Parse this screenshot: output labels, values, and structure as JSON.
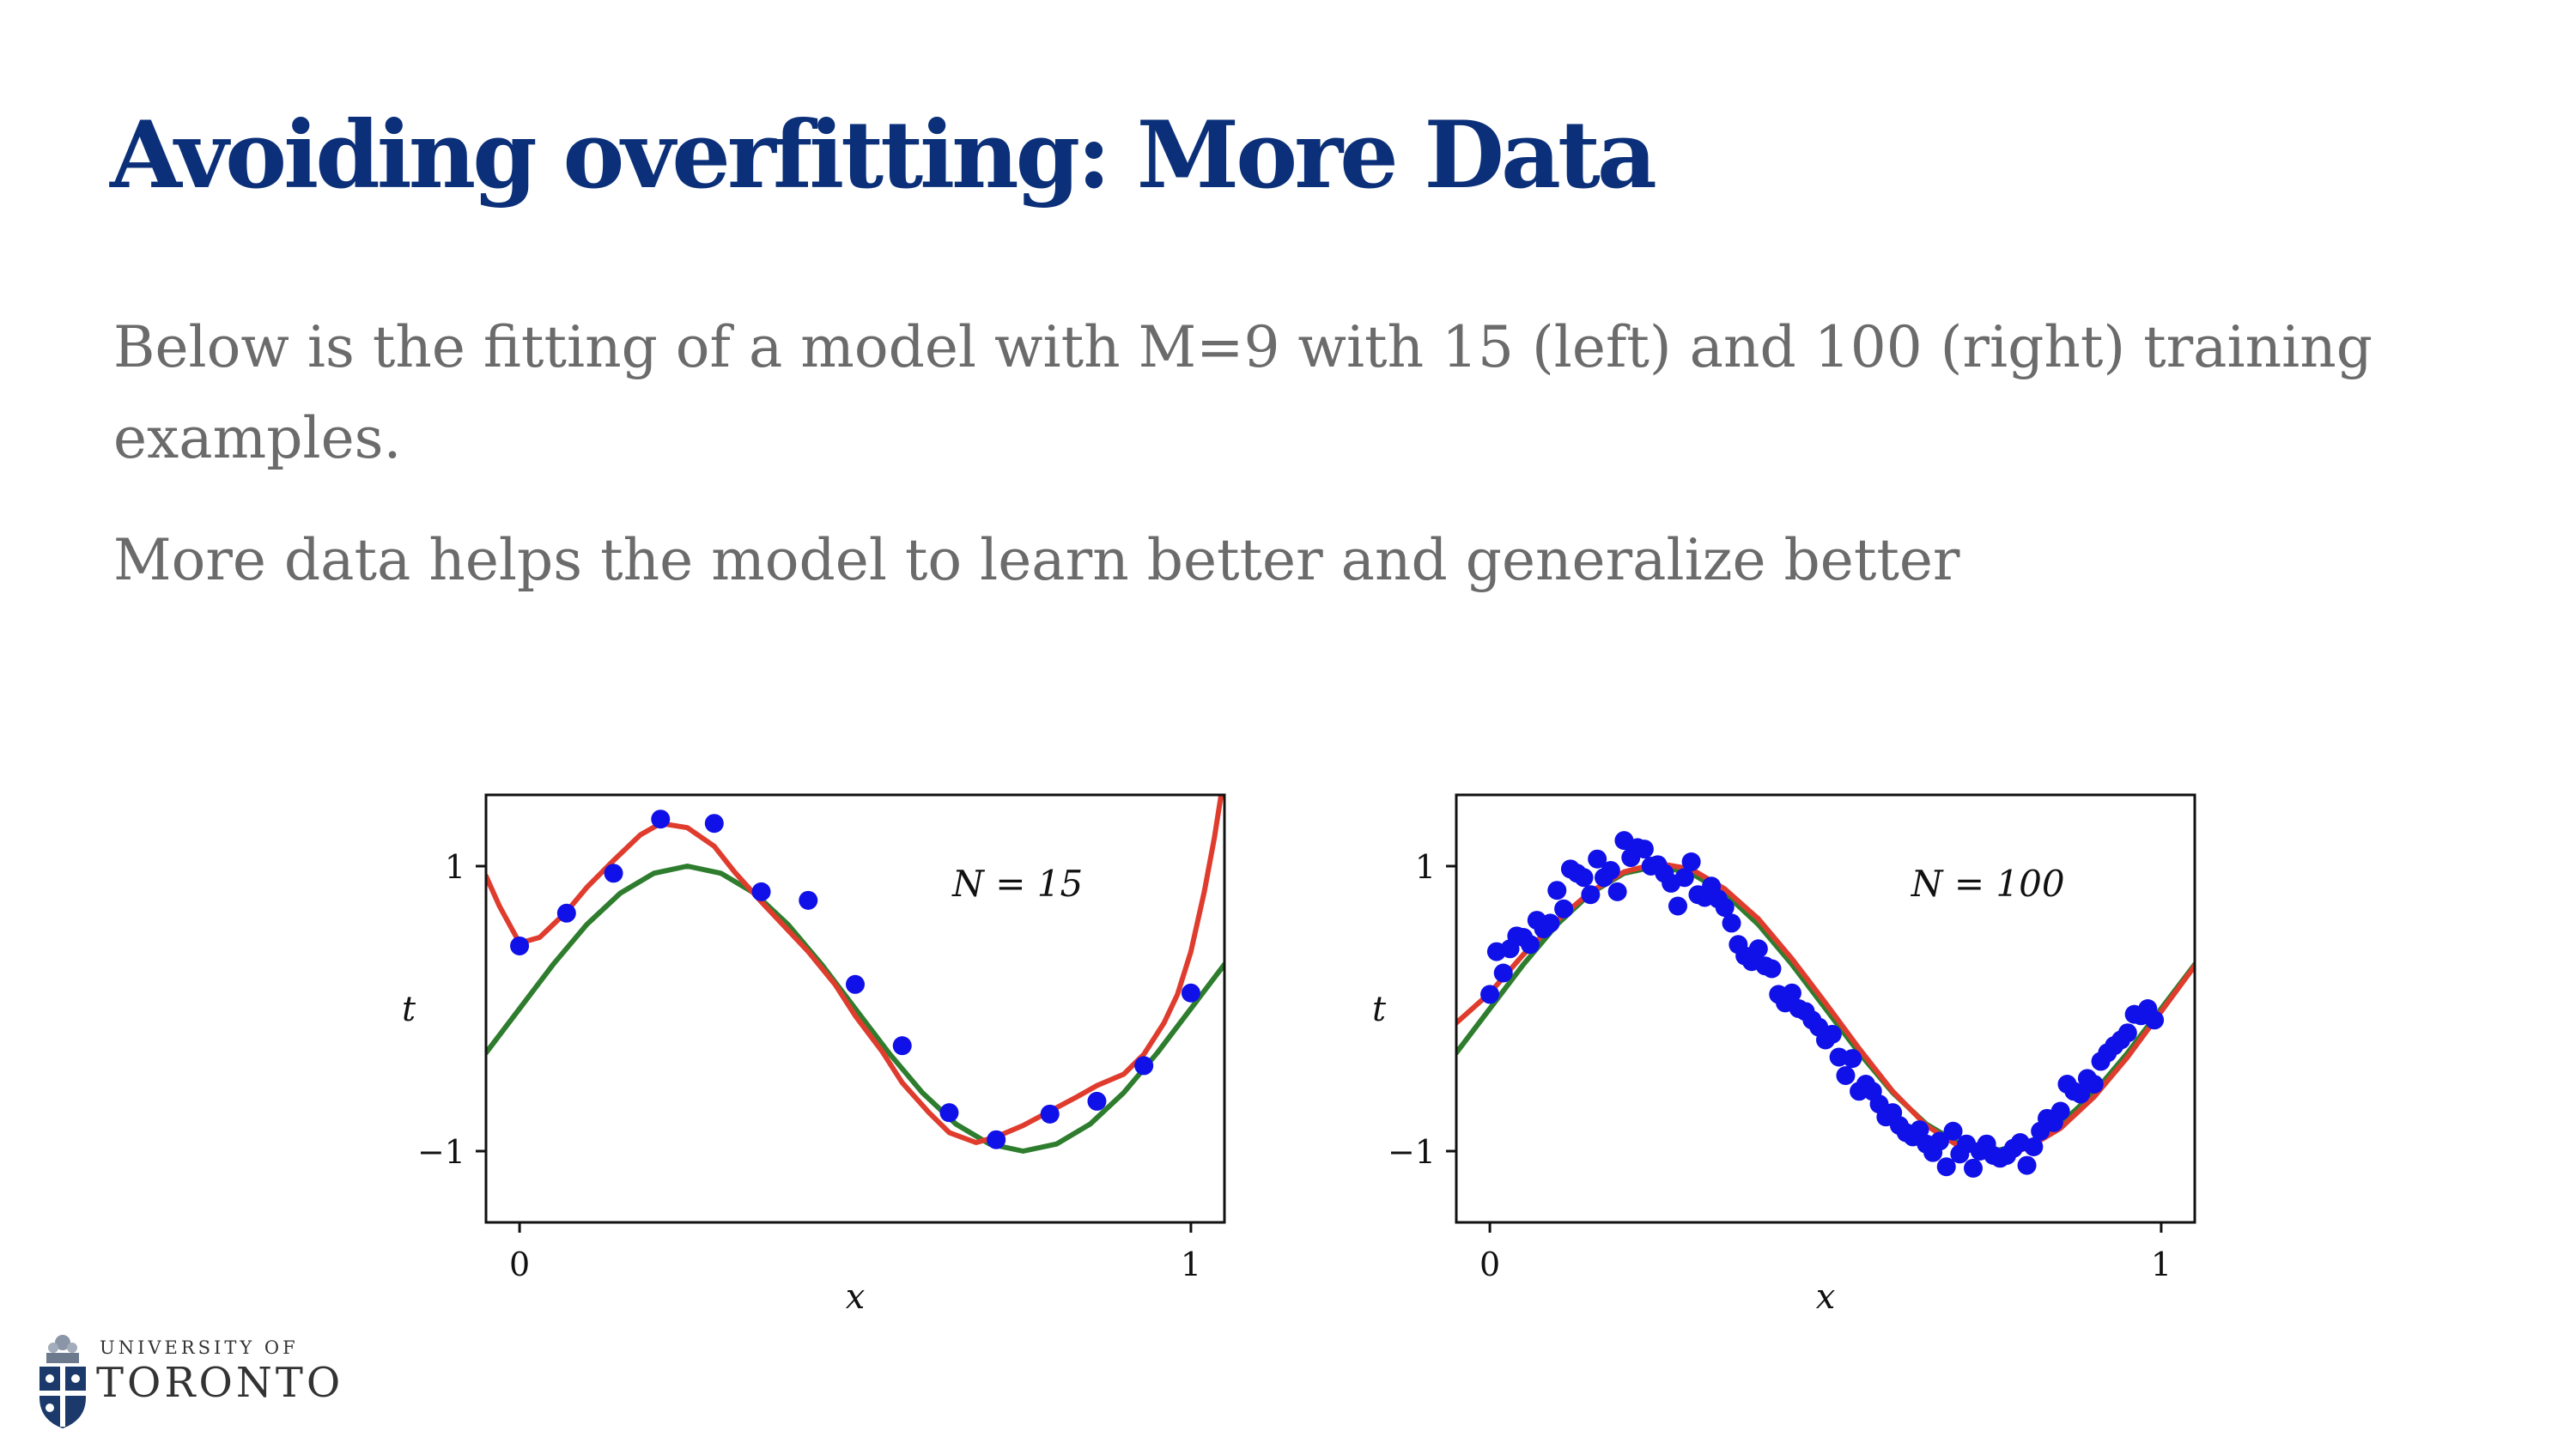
{
  "slide": {
    "title": "Avoiding overfitting: More Data",
    "paragraph1": "Below is the fitting of a model with M=9 with 15 (left) and 100 (right) training examples.",
    "paragraph2": "More data helps the model to learn better and generalize better",
    "title_color": "#0b3079",
    "text_color": "#6b6b6b"
  },
  "logo": {
    "line1": "UNIVERSITY OF",
    "line2": "TORONTO"
  },
  "colors": {
    "points": "#1010e8",
    "true_curve": "#2e7d2e",
    "fit_curve": "#e03c2e"
  },
  "chart_data": [
    {
      "type": "scatter",
      "annotation": "N = 15",
      "xlabel": "x",
      "ylabel": "t",
      "xticks": [
        {
          "value": 0,
          "label": "0"
        },
        {
          "value": 1,
          "label": "1"
        }
      ],
      "yticks": [
        {
          "value": 1,
          "label": "1"
        },
        {
          "value": -1,
          "label": "−1"
        }
      ],
      "xlim": [
        -0.05,
        1.05
      ],
      "ylim": [
        -1.5,
        1.5
      ],
      "grid": false,
      "series": [
        {
          "kind": "points",
          "x": [
            0.0,
            0.07,
            0.14,
            0.21,
            0.29,
            0.36,
            0.43,
            0.5,
            0.57,
            0.64,
            0.71,
            0.79,
            0.86,
            0.93,
            1.0
          ],
          "y": [
            0.44,
            0.67,
            0.95,
            1.33,
            1.3,
            0.82,
            0.76,
            0.17,
            -0.26,
            -0.73,
            -0.92,
            -0.74,
            -0.65,
            -0.4,
            0.11
          ]
        },
        {
          "kind": "true_curve",
          "x": [
            -0.05,
            0.0,
            0.05,
            0.1,
            0.15,
            0.2,
            0.25,
            0.3,
            0.35,
            0.4,
            0.45,
            0.5,
            0.55,
            0.6,
            0.65,
            0.7,
            0.75,
            0.8,
            0.85,
            0.9,
            0.95,
            1.0,
            1.05
          ],
          "y": [
            -0.31,
            0.0,
            0.31,
            0.59,
            0.81,
            0.95,
            1.0,
            0.95,
            0.81,
            0.59,
            0.31,
            0.0,
            -0.31,
            -0.59,
            -0.81,
            -0.95,
            -1.0,
            -0.95,
            -0.81,
            -0.59,
            -0.31,
            0.0,
            0.31
          ]
        },
        {
          "kind": "fit_curve",
          "x": [
            -0.05,
            -0.03,
            0.0,
            0.03,
            0.07,
            0.1,
            0.14,
            0.18,
            0.21,
            0.25,
            0.29,
            0.32,
            0.36,
            0.4,
            0.43,
            0.47,
            0.5,
            0.54,
            0.57,
            0.61,
            0.64,
            0.68,
            0.71,
            0.75,
            0.79,
            0.83,
            0.86,
            0.9,
            0.93,
            0.96,
            0.98,
            1.0,
            1.02,
            1.035,
            1.045
          ],
          "y": [
            0.93,
            0.72,
            0.46,
            0.5,
            0.68,
            0.85,
            1.04,
            1.22,
            1.3,
            1.27,
            1.14,
            0.96,
            0.75,
            0.55,
            0.4,
            0.17,
            -0.05,
            -0.3,
            -0.52,
            -0.73,
            -0.87,
            -0.94,
            -0.9,
            -0.82,
            -0.72,
            -0.62,
            -0.54,
            -0.46,
            -0.32,
            -0.1,
            0.1,
            0.4,
            0.82,
            1.2,
            1.5
          ]
        }
      ]
    },
    {
      "type": "scatter",
      "annotation": "N = 100",
      "xlabel": "x",
      "ylabel": "t",
      "xticks": [
        {
          "value": 0,
          "label": "0"
        },
        {
          "value": 1,
          "label": "1"
        }
      ],
      "yticks": [
        {
          "value": 1,
          "label": "1"
        },
        {
          "value": -1,
          "label": "−1"
        }
      ],
      "xlim": [
        -0.05,
        1.05
      ],
      "ylim": [
        -1.5,
        1.5
      ],
      "grid": false,
      "series": [
        {
          "kind": "points",
          "x": [
            0.0,
            0.01,
            0.02,
            0.03,
            0.04,
            0.05,
            0.06,
            0.07,
            0.08,
            0.09,
            0.1,
            0.11,
            0.12,
            0.13,
            0.14,
            0.15,
            0.16,
            0.17,
            0.18,
            0.19,
            0.2,
            0.21,
            0.22,
            0.23,
            0.24,
            0.25,
            0.26,
            0.27,
            0.28,
            0.29,
            0.3,
            0.31,
            0.32,
            0.33,
            0.34,
            0.35,
            0.36,
            0.37,
            0.38,
            0.39,
            0.4,
            0.41,
            0.42,
            0.43,
            0.44,
            0.45,
            0.46,
            0.47,
            0.48,
            0.49,
            0.5,
            0.51,
            0.52,
            0.53,
            0.54,
            0.55,
            0.56,
            0.57,
            0.58,
            0.59,
            0.6,
            0.61,
            0.62,
            0.63,
            0.64,
            0.65,
            0.66,
            0.67,
            0.68,
            0.69,
            0.7,
            0.71,
            0.72,
            0.73,
            0.74,
            0.75,
            0.76,
            0.77,
            0.78,
            0.79,
            0.8,
            0.81,
            0.82,
            0.83,
            0.84,
            0.85,
            0.86,
            0.87,
            0.88,
            0.89,
            0.9,
            0.91,
            0.92,
            0.93,
            0.94,
            0.95,
            0.96,
            0.97,
            0.98,
            0.99
          ],
          "y": [
            0.1,
            0.4,
            0.25,
            0.42,
            0.51,
            0.5,
            0.45,
            0.62,
            0.56,
            0.6,
            0.83,
            0.7,
            0.98,
            0.95,
            0.92,
            0.8,
            1.05,
            0.92,
            0.97,
            0.82,
            1.18,
            1.06,
            1.13,
            1.12,
            1.0,
            1.01,
            0.95,
            0.88,
            0.72,
            0.92,
            1.03,
            0.8,
            0.78,
            0.86,
            0.77,
            0.71,
            0.6,
            0.45,
            0.37,
            0.33,
            0.42,
            0.3,
            0.28,
            0.1,
            0.04,
            0.11,
            0.0,
            -0.02,
            -0.08,
            -0.13,
            -0.22,
            -0.18,
            -0.34,
            -0.47,
            -0.35,
            -0.58,
            -0.53,
            -0.58,
            -0.67,
            -0.76,
            -0.73,
            -0.82,
            -0.87,
            -0.9,
            -0.85,
            -0.95,
            -1.01,
            -0.93,
            -1.11,
            -0.86,
            -1.02,
            -0.95,
            -1.12,
            -1.0,
            -0.95,
            -1.03,
            -1.05,
            -1.03,
            -0.98,
            -0.94,
            -1.1,
            -0.97,
            -0.86,
            -0.77,
            -0.8,
            -0.72,
            -0.53,
            -0.58,
            -0.6,
            -0.49,
            -0.53,
            -0.37,
            -0.31,
            -0.26,
            -0.22,
            -0.17,
            -0.04,
            -0.05,
            0.0,
            -0.08
          ]
        },
        {
          "kind": "true_curve",
          "x": [
            -0.05,
            0.0,
            0.05,
            0.1,
            0.15,
            0.2,
            0.25,
            0.3,
            0.35,
            0.4,
            0.45,
            0.5,
            0.55,
            0.6,
            0.65,
            0.7,
            0.75,
            0.8,
            0.85,
            0.9,
            0.95,
            1.0,
            1.05
          ],
          "y": [
            -0.31,
            0.0,
            0.31,
            0.59,
            0.81,
            0.95,
            1.0,
            0.95,
            0.81,
            0.59,
            0.31,
            0.0,
            -0.31,
            -0.59,
            -0.81,
            -0.95,
            -1.0,
            -0.95,
            -0.81,
            -0.59,
            -0.31,
            0.0,
            0.31
          ]
        },
        {
          "kind": "fit_curve",
          "x": [
            -0.05,
            0.0,
            0.05,
            0.1,
            0.15,
            0.2,
            0.25,
            0.3,
            0.35,
            0.4,
            0.45,
            0.5,
            0.55,
            0.6,
            0.65,
            0.7,
            0.75,
            0.8,
            0.85,
            0.9,
            0.95,
            1.0,
            1.05
          ],
          "y": [
            -0.1,
            0.11,
            0.38,
            0.62,
            0.82,
            0.96,
            1.02,
            0.98,
            0.84,
            0.63,
            0.35,
            0.04,
            -0.28,
            -0.58,
            -0.82,
            -0.97,
            -1.03,
            -0.98,
            -0.84,
            -0.62,
            -0.34,
            -0.02,
            0.3
          ]
        }
      ]
    }
  ]
}
